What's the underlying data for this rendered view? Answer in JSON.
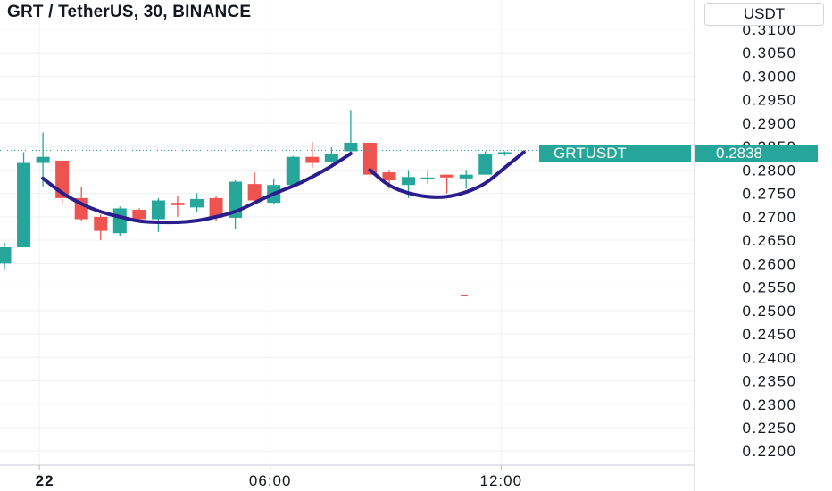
{
  "title": "GRT / TetherUS, 30, BINANCE",
  "currency_button": "USDT",
  "symbol_tag": "GRTUSDT",
  "last_price_tag": "0.2838",
  "colors": {
    "up": "#26a69a",
    "down": "#ef5350",
    "pattern_curve": "#2a1d8c",
    "grid": "#eef0f3",
    "axis_text": "#131722"
  },
  "chart_data": {
    "type": "candlestick",
    "title": "GRT / TetherUS, 30, BINANCE",
    "y_axis_position": "right",
    "ylim": [
      0.2175,
      0.3125
    ],
    "y_ticks": [
      "0.3100",
      "0.3050",
      "0.3000",
      "0.2950",
      "0.2900",
      "0.2850",
      "0.2800",
      "0.2750",
      "0.2700",
      "0.2650",
      "0.2600",
      "0.2550",
      "0.2500",
      "0.2450",
      "0.2400",
      "0.2350",
      "0.2300",
      "0.2250",
      "0.2200"
    ],
    "x_ticks": [
      {
        "label": "22",
        "bar": 2
      },
      {
        "label": "06:00",
        "bar": 14
      },
      {
        "label": "12:00",
        "bar": 26
      }
    ],
    "grid": true,
    "last_price": 0.2838,
    "candles": [
      {
        "o": 0.26,
        "h": 0.2645,
        "l": 0.2588,
        "c": 0.2635
      },
      {
        "o": 0.2635,
        "h": 0.2838,
        "l": 0.2635,
        "c": 0.2815
      },
      {
        "o": 0.2815,
        "h": 0.288,
        "l": 0.2765,
        "c": 0.2828
      },
      {
        "o": 0.282,
        "h": 0.282,
        "l": 0.2725,
        "c": 0.274
      },
      {
        "o": 0.274,
        "h": 0.2765,
        "l": 0.269,
        "c": 0.2695
      },
      {
        "o": 0.27,
        "h": 0.2705,
        "l": 0.265,
        "c": 0.267
      },
      {
        "o": 0.2665,
        "h": 0.2722,
        "l": 0.266,
        "c": 0.2718
      },
      {
        "o": 0.2715,
        "h": 0.2718,
        "l": 0.269,
        "c": 0.2695
      },
      {
        "o": 0.2695,
        "h": 0.274,
        "l": 0.2668,
        "c": 0.2735
      },
      {
        "o": 0.273,
        "h": 0.2745,
        "l": 0.27,
        "c": 0.2725
      },
      {
        "o": 0.272,
        "h": 0.275,
        "l": 0.271,
        "c": 0.2738
      },
      {
        "o": 0.274,
        "h": 0.2745,
        "l": 0.269,
        "c": 0.2698
      },
      {
        "o": 0.2698,
        "h": 0.2778,
        "l": 0.2675,
        "c": 0.2775
      },
      {
        "o": 0.277,
        "h": 0.2795,
        "l": 0.2732,
        "c": 0.2735
      },
      {
        "o": 0.273,
        "h": 0.278,
        "l": 0.2728,
        "c": 0.2768
      },
      {
        "o": 0.2768,
        "h": 0.283,
        "l": 0.2765,
        "c": 0.2828
      },
      {
        "o": 0.2828,
        "h": 0.286,
        "l": 0.2805,
        "c": 0.2815
      },
      {
        "o": 0.2818,
        "h": 0.2848,
        "l": 0.2815,
        "c": 0.2835
      },
      {
        "o": 0.284,
        "h": 0.2928,
        "l": 0.2835,
        "c": 0.2858
      },
      {
        "o": 0.2858,
        "h": 0.286,
        "l": 0.2785,
        "c": 0.279
      },
      {
        "o": 0.2795,
        "h": 0.28,
        "l": 0.276,
        "c": 0.2778
      },
      {
        "o": 0.2768,
        "h": 0.28,
        "l": 0.274,
        "c": 0.2785
      },
      {
        "o": 0.2782,
        "h": 0.28,
        "l": 0.277,
        "c": 0.2784
      },
      {
        "o": 0.279,
        "h": 0.279,
        "l": 0.275,
        "c": 0.2784
      },
      {
        "o": 0.2782,
        "h": 0.28,
        "l": 0.276,
        "c": 0.279
      },
      {
        "o": 0.279,
        "h": 0.284,
        "l": 0.279,
        "c": 0.2835
      },
      {
        "o": 0.2837,
        "h": 0.284,
        "l": 0.283,
        "c": 0.2838
      }
    ],
    "pattern_curves": [
      {
        "points": [
          [
            2,
            0.2782
          ],
          [
            3,
            0.275
          ],
          [
            4,
            0.2727
          ],
          [
            5,
            0.271
          ],
          [
            6,
            0.27
          ],
          [
            7,
            0.269
          ],
          [
            8,
            0.2688
          ],
          [
            9,
            0.2688
          ],
          [
            10,
            0.2691
          ],
          [
            11,
            0.27
          ],
          [
            12,
            0.271
          ],
          [
            13,
            0.273
          ],
          [
            14,
            0.275
          ],
          [
            15,
            0.2765
          ],
          [
            16,
            0.2785
          ],
          [
            17,
            0.2808
          ],
          [
            18,
            0.2835
          ]
        ]
      },
      {
        "points": [
          [
            19,
            0.28
          ],
          [
            20,
            0.2765
          ],
          [
            21,
            0.275
          ],
          [
            22,
            0.2742
          ],
          [
            23,
            0.2742
          ],
          [
            24,
            0.2752
          ],
          [
            25,
            0.277
          ],
          [
            26,
            0.2805
          ],
          [
            27,
            0.2838
          ]
        ]
      }
    ],
    "stray_marks": [
      {
        "bar": 23.9,
        "price": 0.2532
      }
    ]
  }
}
